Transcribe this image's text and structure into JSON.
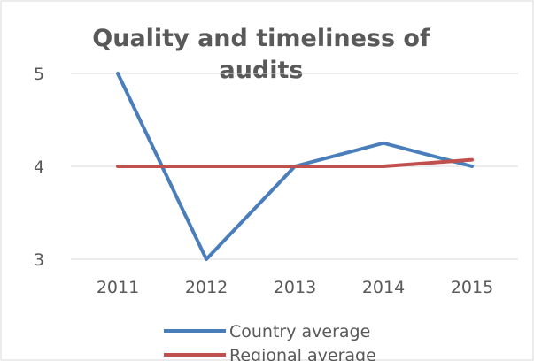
{
  "chart_data": {
    "type": "line",
    "title_lines": [
      "Quality and timeliness of",
      "audits"
    ],
    "categories": [
      "2011",
      "2012",
      "2013",
      "2014",
      "2015"
    ],
    "ylim": [
      3,
      5
    ],
    "yticks": [
      "3",
      "4",
      "5"
    ],
    "grid": true,
    "legend_position": "bottom",
    "series": [
      {
        "name": "Country average",
        "values": [
          5,
          3,
          4,
          4.25,
          4.0
        ],
        "color": "#4a7ebb"
      },
      {
        "name": "Regional average",
        "values": [
          4,
          4,
          4,
          4,
          4.07
        ],
        "color": "#c0504d"
      }
    ]
  }
}
